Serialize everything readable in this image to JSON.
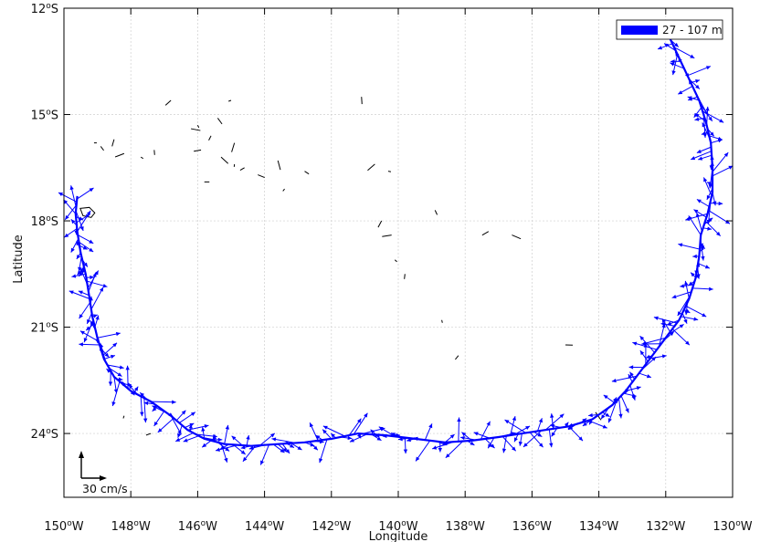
{
  "chart_data": {
    "type": "vector-map",
    "xlabel": "Longitude",
    "ylabel": "Latitude",
    "x_ticks": [
      {
        "lon": -150,
        "deg": "150",
        "hemi": "W"
      },
      {
        "lon": -148,
        "deg": "148",
        "hemi": "W"
      },
      {
        "lon": -146,
        "deg": "146",
        "hemi": "W"
      },
      {
        "lon": -144,
        "deg": "144",
        "hemi": "W"
      },
      {
        "lon": -142,
        "deg": "142",
        "hemi": "W"
      },
      {
        "lon": -140,
        "deg": "140",
        "hemi": "W"
      },
      {
        "lon": -138,
        "deg": "138",
        "hemi": "W"
      },
      {
        "lon": -136,
        "deg": "136",
        "hemi": "W"
      },
      {
        "lon": -134,
        "deg": "134",
        "hemi": "W"
      },
      {
        "lon": -132,
        "deg": "132",
        "hemi": "W"
      },
      {
        "lon": -130,
        "deg": "130",
        "hemi": "W"
      }
    ],
    "y_ticks": [
      {
        "lat": -12,
        "deg": "12",
        "hemi": "S"
      },
      {
        "lat": -15,
        "deg": "15",
        "hemi": "S"
      },
      {
        "lat": -18,
        "deg": "18",
        "hemi": "S"
      },
      {
        "lat": -21,
        "deg": "21",
        "hemi": "S"
      },
      {
        "lat": -24,
        "deg": "24",
        "hemi": "S"
      }
    ],
    "xlim": [
      -150,
      -130
    ],
    "ylim": [
      -25.8,
      -12
    ],
    "grid": true,
    "legend": {
      "label": "27 - 107 m",
      "color": "#0000ff",
      "position": "top-right"
    },
    "scale_arrow": {
      "label": "30 cm/s"
    },
    "vector_color": "#0000ff",
    "track": [
      [
        -131.9,
        -12.8
      ],
      [
        -131.6,
        -13.4
      ],
      [
        -131.3,
        -14.0
      ],
      [
        -131.0,
        -14.6
      ],
      [
        -130.8,
        -15.2
      ],
      [
        -130.65,
        -15.8
      ],
      [
        -130.6,
        -16.5
      ],
      [
        -130.6,
        -17.2
      ],
      [
        -130.75,
        -17.8
      ],
      [
        -130.95,
        -18.4
      ],
      [
        -131.0,
        -19.0
      ],
      [
        -131.1,
        -19.6
      ],
      [
        -131.3,
        -20.2
      ],
      [
        -131.6,
        -20.8
      ],
      [
        -132.0,
        -21.3
      ],
      [
        -132.4,
        -21.8
      ],
      [
        -132.8,
        -22.3
      ],
      [
        -133.2,
        -22.8
      ],
      [
        -133.6,
        -23.2
      ],
      [
        -134.2,
        -23.6
      ],
      [
        -134.9,
        -23.8
      ],
      [
        -135.6,
        -23.9
      ],
      [
        -136.3,
        -24.0
      ],
      [
        -137.0,
        -24.1
      ],
      [
        -137.8,
        -24.2
      ],
      [
        -138.6,
        -24.25
      ],
      [
        -139.5,
        -24.15
      ],
      [
        -140.4,
        -24.05
      ],
      [
        -141.2,
        -24.0
      ],
      [
        -142.0,
        -24.15
      ],
      [
        -142.8,
        -24.25
      ],
      [
        -143.6,
        -24.3
      ],
      [
        -144.4,
        -24.35
      ],
      [
        -145.2,
        -24.3
      ],
      [
        -145.8,
        -24.15
      ],
      [
        -146.3,
        -23.9
      ],
      [
        -146.8,
        -23.5
      ],
      [
        -147.4,
        -23.1
      ],
      [
        -148.0,
        -22.8
      ],
      [
        -148.5,
        -22.4
      ],
      [
        -148.8,
        -21.9
      ],
      [
        -149.0,
        -21.3
      ],
      [
        -149.15,
        -20.7
      ],
      [
        -149.25,
        -20.1
      ],
      [
        -149.35,
        -19.5
      ],
      [
        -149.5,
        -18.9
      ],
      [
        -149.6,
        -18.3
      ],
      [
        -149.65,
        -17.8
      ],
      [
        -149.6,
        -17.3
      ]
    ],
    "islands": [
      [
        -149.1,
        -15.8
      ],
      [
        -148.9,
        -15.9
      ],
      [
        -148.5,
        -15.7
      ],
      [
        -148.2,
        -16.1
      ],
      [
        -147.7,
        -16.2
      ],
      [
        -147.3,
        -16.0
      ],
      [
        -146.8,
        -14.6
      ],
      [
        -146.2,
        -15.4
      ],
      [
        -146.0,
        -15.3
      ],
      [
        -145.6,
        -15.6
      ],
      [
        -145.9,
        -16.0
      ],
      [
        -145.3,
        -16.2
      ],
      [
        -144.9,
        -16.4
      ],
      [
        -144.6,
        -16.5
      ],
      [
        -144.2,
        -16.7
      ],
      [
        -143.6,
        -16.3
      ],
      [
        -143.4,
        -17.1
      ],
      [
        -145.8,
        -16.9
      ],
      [
        -145.4,
        -15.1
      ],
      [
        -144.9,
        -15.8
      ],
      [
        -145.0,
        -14.6
      ],
      [
        -142.8,
        -16.6
      ],
      [
        -141.1,
        -14.5
      ],
      [
        -140.7,
        -16.4
      ],
      [
        -140.3,
        -16.6
      ],
      [
        -138.9,
        -17.7
      ],
      [
        -140.5,
        -18.0
      ],
      [
        -140.2,
        -18.4
      ],
      [
        -140.1,
        -19.1
      ],
      [
        -139.8,
        -19.5
      ],
      [
        -137.3,
        -18.3
      ],
      [
        -136.6,
        -18.4
      ],
      [
        -138.7,
        -20.8
      ],
      [
        -138.2,
        -21.8
      ],
      [
        -135.0,
        -21.5
      ],
      [
        -134.1,
        -23.4
      ],
      [
        -148.2,
        -23.5
      ],
      [
        -147.4,
        -24.0
      ]
    ]
  }
}
